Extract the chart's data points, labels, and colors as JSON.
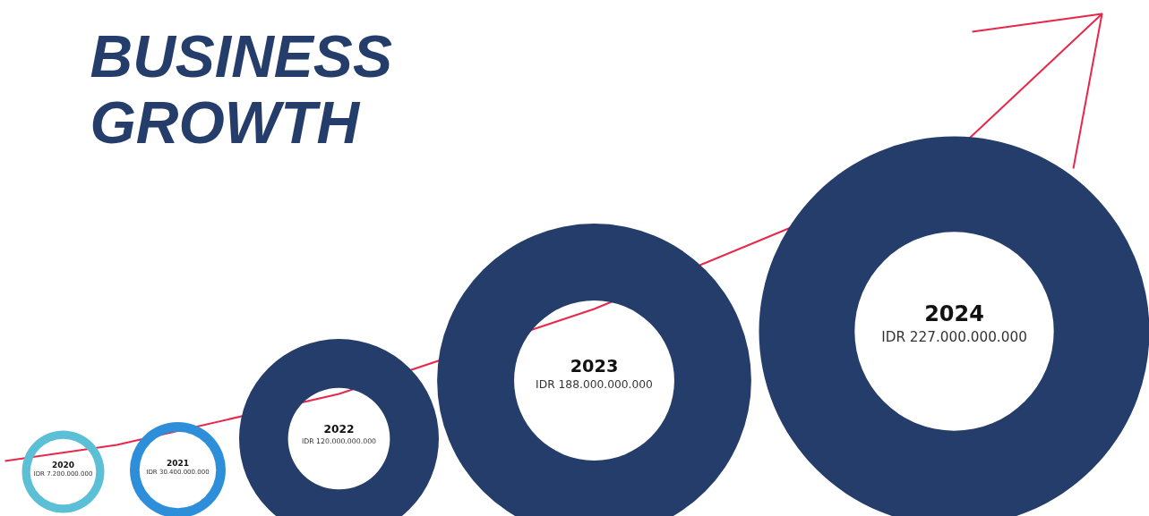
{
  "chart_data": {
    "type": "other",
    "title": "BUSINESS GROWTH",
    "categories": [
      "2020",
      "2021",
      "2022",
      "2023",
      "2024"
    ],
    "values": [
      7200000000,
      30400000000,
      120000000000,
      188000000000,
      227000000000
    ],
    "value_labels": [
      "IDR 7.200.000.000",
      "IDR 30.400.000.000",
      "IDR 120.000.000.000",
      "IDR 188.000.000.000",
      "IDR 227.000.000.000"
    ],
    "colors": [
      "#5bbfd6",
      "#2d8fd9",
      "#253d6a",
      "#253d6a",
      "#253d6a"
    ]
  }
}
